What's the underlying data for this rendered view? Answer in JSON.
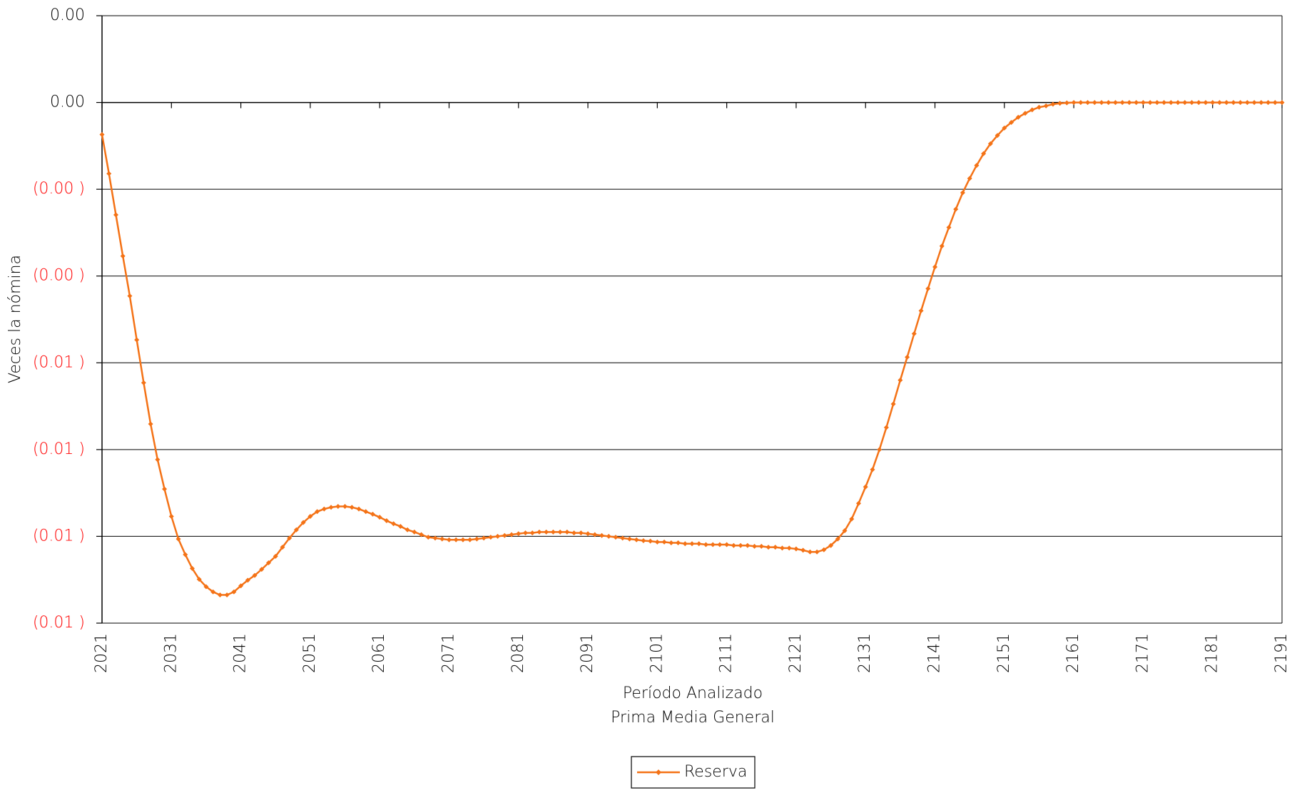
{
  "chart_data": {
    "type": "line",
    "ylabel": "Veces la nómina",
    "xlabel": "Período Analizado",
    "subtitle": "Prima Media General",
    "x": [
      2021,
      2022,
      2023,
      2024,
      2025,
      2026,
      2027,
      2028,
      2029,
      2030,
      2031,
      2032,
      2033,
      2034,
      2035,
      2036,
      2037,
      2038,
      2039,
      2040,
      2041,
      2042,
      2043,
      2044,
      2045,
      2046,
      2047,
      2048,
      2049,
      2050,
      2051,
      2052,
      2053,
      2054,
      2055,
      2056,
      2057,
      2058,
      2059,
      2060,
      2061,
      2062,
      2063,
      2064,
      2065,
      2066,
      2067,
      2068,
      2069,
      2070,
      2071,
      2072,
      2073,
      2074,
      2075,
      2076,
      2077,
      2078,
      2079,
      2080,
      2081,
      2082,
      2083,
      2084,
      2085,
      2086,
      2087,
      2088,
      2089,
      2090,
      2091,
      2092,
      2093,
      2094,
      2095,
      2096,
      2097,
      2098,
      2099,
      2100,
      2101,
      2102,
      2103,
      2104,
      2105,
      2106,
      2107,
      2108,
      2109,
      2110,
      2111,
      2112,
      2113,
      2114,
      2115,
      2116,
      2117,
      2118,
      2119,
      2120,
      2121,
      2122,
      2123,
      2124,
      2125,
      2126,
      2127,
      2128,
      2129,
      2130,
      2131,
      2132,
      2133,
      2134,
      2135,
      2136,
      2137,
      2138,
      2139,
      2140,
      2141,
      2142,
      2143,
      2144,
      2145,
      2146,
      2147,
      2148,
      2149,
      2150,
      2151,
      2152,
      2153,
      2154,
      2155,
      2156,
      2157,
      2158,
      2159,
      2160,
      2161,
      2162,
      2163,
      2164,
      2165,
      2166,
      2167,
      2168,
      2169,
      2170,
      2171,
      2172,
      2173,
      2174,
      2175,
      2176,
      2177,
      2178,
      2179,
      2180,
      2181,
      2182,
      2183,
      2184,
      2185,
      2186,
      2187,
      2188,
      2189,
      2190,
      2191
    ],
    "series": [
      {
        "name": "Reserva",
        "color": "#f47216",
        "values": [
          -0.00074,
          -0.00164,
          -0.00259,
          -0.00354,
          -0.00446,
          -0.00547,
          -0.00646,
          -0.00741,
          -0.00823,
          -0.00891,
          -0.00954,
          -0.01006,
          -0.01042,
          -0.01074,
          -0.01099,
          -0.01116,
          -0.01128,
          -0.01135,
          -0.01135,
          -0.01128,
          -0.01114,
          -0.01101,
          -0.0109,
          -0.01076,
          -0.01061,
          -0.01046,
          -0.01025,
          -0.01004,
          -0.00985,
          -0.00968,
          -0.00954,
          -0.00943,
          -0.00937,
          -0.00933,
          -0.00931,
          -0.00931,
          -0.00933,
          -0.00937,
          -0.00943,
          -0.00949,
          -0.00956,
          -0.00964,
          -0.00971,
          -0.00977,
          -0.00985,
          -0.0099,
          -0.00996,
          -0.01002,
          -0.01004,
          -0.01006,
          -0.01008,
          -0.01008,
          -0.01008,
          -0.01008,
          -0.01006,
          -0.01004,
          -0.01002,
          -0.01,
          -0.00998,
          -0.00996,
          -0.00994,
          -0.00992,
          -0.00992,
          -0.0099,
          -0.0099,
          -0.0099,
          -0.0099,
          -0.0099,
          -0.00992,
          -0.00992,
          -0.00994,
          -0.00996,
          -0.00998,
          -0.01,
          -0.01002,
          -0.01004,
          -0.01006,
          -0.01008,
          -0.0101,
          -0.01011,
          -0.01013,
          -0.01013,
          -0.01015,
          -0.01015,
          -0.01017,
          -0.01017,
          -0.01017,
          -0.01019,
          -0.01019,
          -0.01019,
          -0.01019,
          -0.01021,
          -0.01021,
          -0.01021,
          -0.01023,
          -0.01023,
          -0.01025,
          -0.01025,
          -0.01027,
          -0.01027,
          -0.01029,
          -0.01032,
          -0.01036,
          -0.01036,
          -0.01031,
          -0.01021,
          -0.01006,
          -0.00987,
          -0.0096,
          -0.00924,
          -0.00886,
          -0.00846,
          -0.008,
          -0.00749,
          -0.00695,
          -0.0064,
          -0.00587,
          -0.00533,
          -0.0048,
          -0.00429,
          -0.00379,
          -0.00331,
          -0.00288,
          -0.00246,
          -0.00208,
          -0.00175,
          -0.00145,
          -0.00118,
          -0.00095,
          -0.00076,
          -0.00059,
          -0.00046,
          -0.00034,
          -0.00025,
          -0.00017,
          -0.00011,
          -8e-05,
          -4e-05,
          -2e-05,
          -1e-05,
          0,
          0,
          0,
          0,
          0,
          0,
          0,
          0,
          0,
          0,
          0,
          0,
          0,
          0,
          0,
          0,
          0,
          0,
          0,
          0,
          0,
          0,
          0,
          0,
          0,
          0,
          0,
          0,
          0,
          0,
          0
        ]
      }
    ],
    "xlim": [
      2021,
      2191
    ],
    "xticks": [
      2021,
      2031,
      2041,
      2051,
      2061,
      2071,
      2081,
      2091,
      2101,
      2111,
      2121,
      2131,
      2141,
      2151,
      2161,
      2171,
      2181,
      2191
    ],
    "ylim": [
      -0.012,
      0.002
    ],
    "yticks": [
      {
        "value": 0.002,
        "label": "0.00"
      },
      {
        "value": 0,
        "label": "0.00"
      },
      {
        "value": -0.002,
        "label": "(0.00 )"
      },
      {
        "value": -0.004,
        "label": "(0.00 )"
      },
      {
        "value": -0.006,
        "label": "(0.01 )"
      },
      {
        "value": -0.008,
        "label": "(0.01 )"
      },
      {
        "value": -0.01,
        "label": "(0.01 )"
      },
      {
        "value": -0.012,
        "label": "(0.01 )"
      }
    ],
    "negative_tick_color": "#ff0000",
    "grid": true,
    "legend": "bottom"
  }
}
